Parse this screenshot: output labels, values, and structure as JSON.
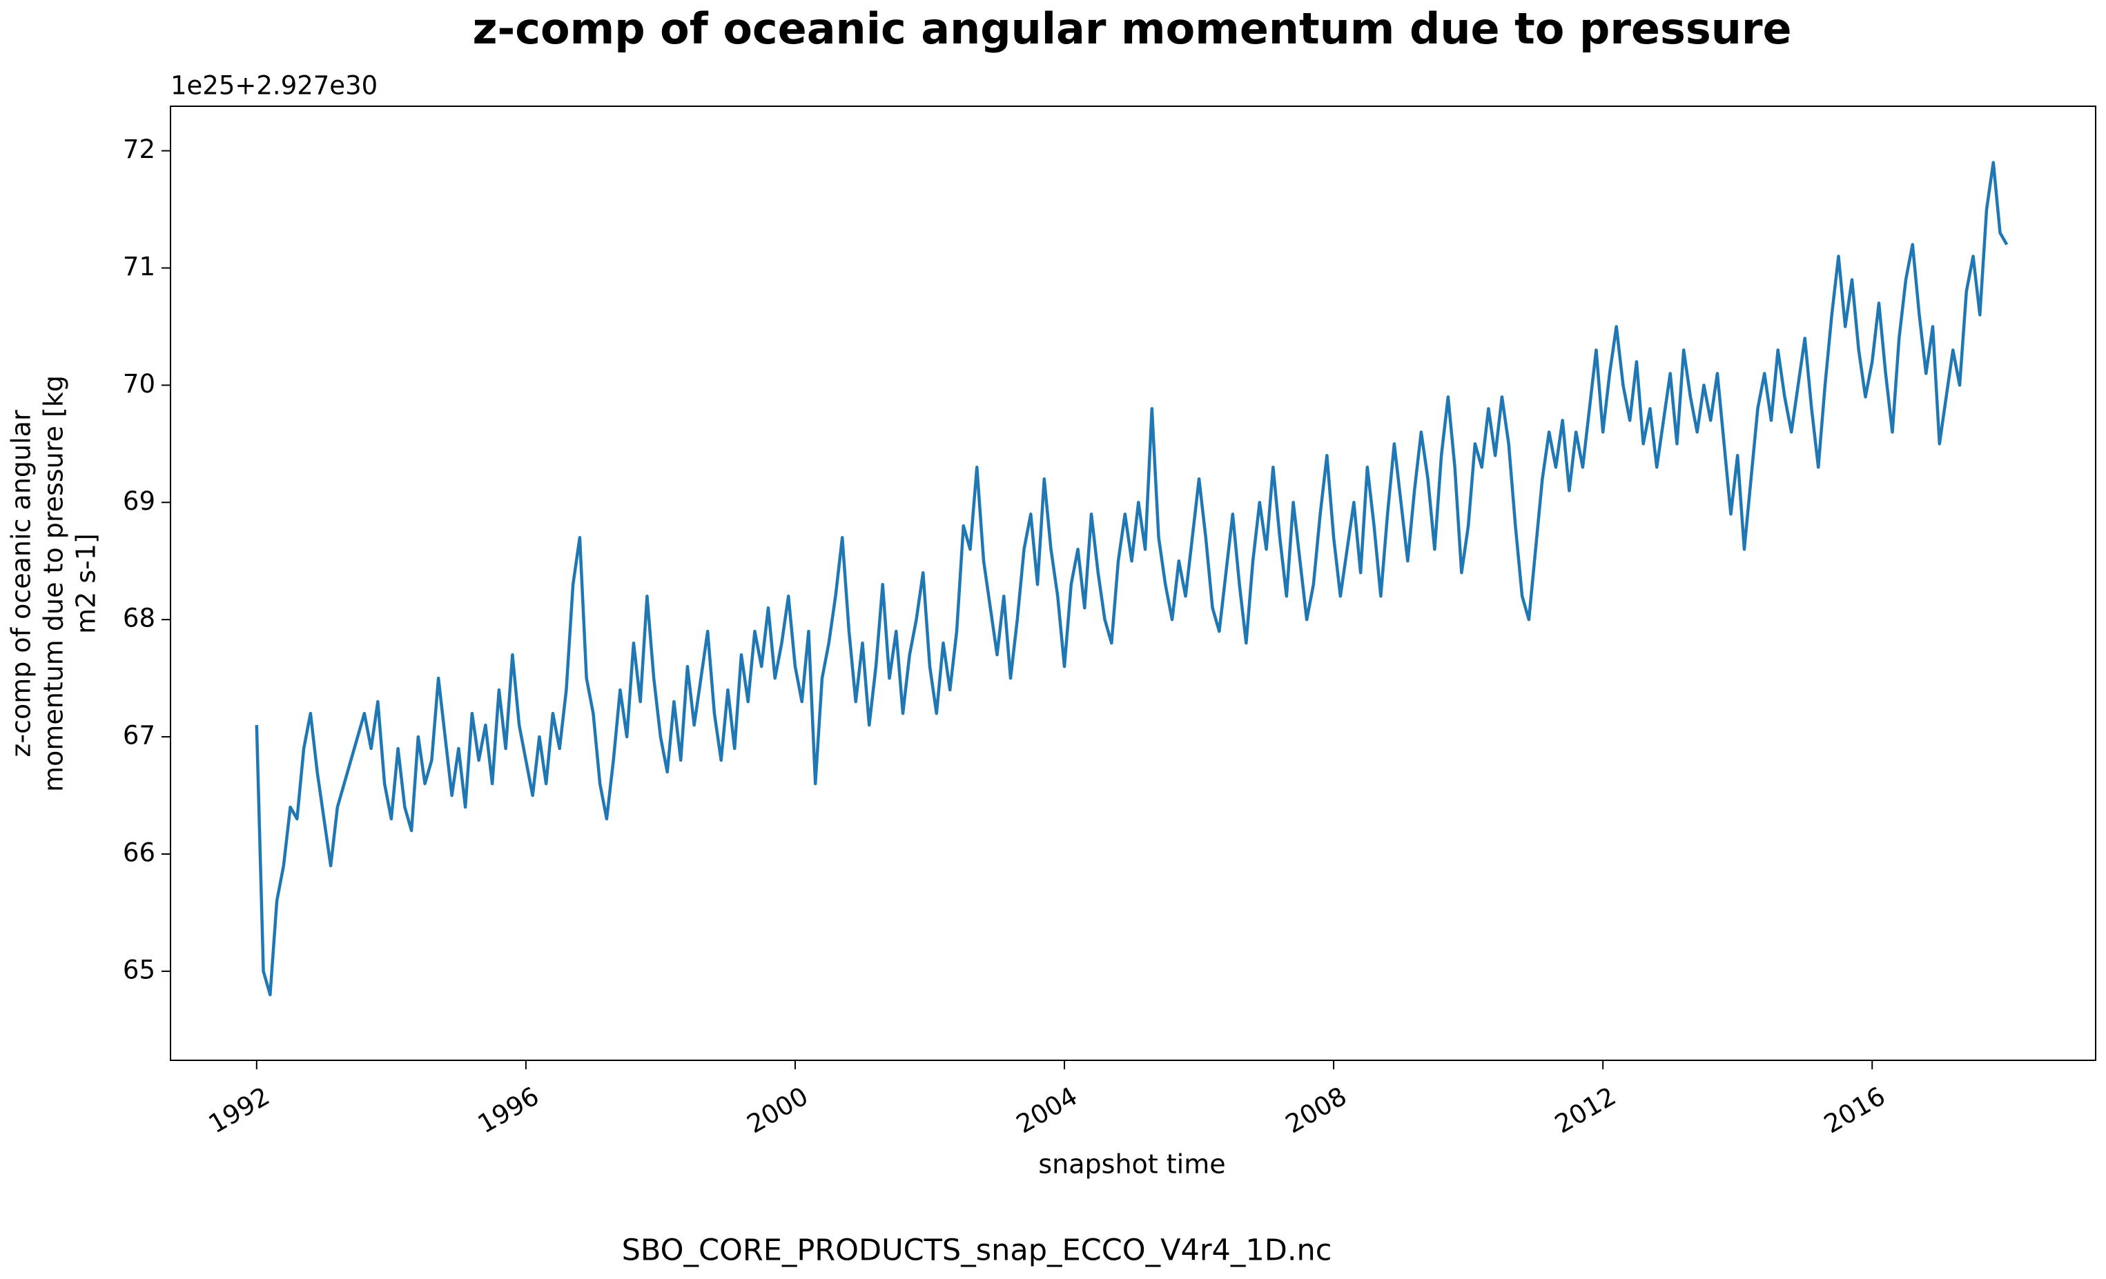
{
  "chart_data": {
    "type": "line",
    "title": "z-comp of oceanic angular momentum due to pressure",
    "y_offset_label": "1e25+2.927e30",
    "ylabel": [
      "z-comp of oceanic angular",
      "momentum due to pressure [kg",
      "m2 s-1]"
    ],
    "xlabel": "snapshot time",
    "footer": "SBO_CORE_PRODUCTS_snap_ECCO_V4r4_1D.nc",
    "xlim": [
      1990.72,
      2019.32
    ],
    "xticks": [
      1992,
      1996,
      2000,
      2004,
      2008,
      2012,
      2016
    ],
    "ylim": [
      64.24,
      72.38
    ],
    "yticks": [
      65,
      66,
      67,
      68,
      69,
      70,
      71,
      72
    ],
    "grid": false,
    "x": [
      1992,
      1992.1,
      1992.2,
      1992.3,
      1992.4,
      1992.5,
      1992.6,
      1992.7,
      1992.8,
      1992.9,
      1993,
      1993.1,
      1993.2,
      1993.3,
      1993.4,
      1993.5,
      1993.6,
      1993.7,
      1993.8,
      1993.9,
      1994,
      1994.1,
      1994.2,
      1994.3,
      1994.4,
      1994.5,
      1994.6,
      1994.7,
      1994.8,
      1994.9,
      1995,
      1995.1,
      1995.2,
      1995.3,
      1995.4,
      1995.5,
      1995.6,
      1995.7,
      1995.8,
      1995.9,
      1996,
      1996.1,
      1996.2,
      1996.3,
      1996.4,
      1996.5,
      1996.6,
      1996.7,
      1996.8,
      1996.9,
      1997,
      1997.1,
      1997.2,
      1997.3,
      1997.4,
      1997.5,
      1997.6,
      1997.7,
      1997.8,
      1997.9,
      1998,
      1998.1,
      1998.2,
      1998.3,
      1998.4,
      1998.5,
      1998.6,
      1998.7,
      1998.8,
      1998.9,
      1999,
      1999.1,
      1999.2,
      1999.3,
      1999.4,
      1999.5,
      1999.6,
      1999.7,
      1999.8,
      1999.9,
      2000,
      2000.1,
      2000.2,
      2000.3,
      2000.4,
      2000.5,
      2000.6,
      2000.7,
      2000.8,
      2000.9,
      2001,
      2001.1,
      2001.2,
      2001.3,
      2001.4,
      2001.5,
      2001.6,
      2001.7,
      2001.8,
      2001.9,
      2002,
      2002.1,
      2002.2,
      2002.3,
      2002.4,
      2002.5,
      2002.6,
      2002.7,
      2002.8,
      2002.9,
      2003,
      2003.1,
      2003.2,
      2003.3,
      2003.4,
      2003.5,
      2003.6,
      2003.7,
      2003.8,
      2003.9,
      2004,
      2004.1,
      2004.2,
      2004.3,
      2004.4,
      2004.5,
      2004.6,
      2004.7,
      2004.8,
      2004.9,
      2005,
      2005.1,
      2005.2,
      2005.3,
      2005.4,
      2005.5,
      2005.6,
      2005.7,
      2005.8,
      2005.9,
      2006,
      2006.1,
      2006.2,
      2006.3,
      2006.4,
      2006.5,
      2006.6,
      2006.7,
      2006.8,
      2006.9,
      2007,
      2007.1,
      2007.2,
      2007.3,
      2007.4,
      2007.5,
      2007.6,
      2007.7,
      2007.8,
      2007.9,
      2008,
      2008.1,
      2008.2,
      2008.3,
      2008.4,
      2008.5,
      2008.6,
      2008.7,
      2008.8,
      2008.9,
      2009,
      2009.1,
      2009.2,
      2009.3,
      2009.4,
      2009.5,
      2009.6,
      2009.7,
      2009.8,
      2009.9,
      2010,
      2010.1,
      2010.2,
      2010.3,
      2010.4,
      2010.5,
      2010.6,
      2010.7,
      2010.8,
      2010.9,
      2011,
      2011.1,
      2011.2,
      2011.3,
      2011.4,
      2011.5,
      2011.6,
      2011.7,
      2011.8,
      2011.9,
      2012,
      2012.1,
      2012.2,
      2012.3,
      2012.4,
      2012.5,
      2012.6,
      2012.7,
      2012.8,
      2012.9,
      2013,
      2013.1,
      2013.2,
      2013.3,
      2013.4,
      2013.5,
      2013.6,
      2013.7,
      2013.8,
      2013.9,
      2014,
      2014.1,
      2014.2,
      2014.3,
      2014.4,
      2014.5,
      2014.6,
      2014.7,
      2014.8,
      2014.9,
      2015,
      2015.1,
      2015.2,
      2015.3,
      2015.4,
      2015.5,
      2015.6,
      2015.7,
      2015.8,
      2015.9,
      2016,
      2016.1,
      2016.2,
      2016.3,
      2016.4,
      2016.5,
      2016.6,
      2016.7,
      2016.8,
      2016.9,
      2017,
      2017.1,
      2017.2,
      2017.3,
      2017.4,
      2017.5,
      2017.6,
      2017.7,
      2017.8,
      2017.9,
      2018
    ],
    "series": [
      {
        "color": "#1f77b4",
        "values": [
          67.1,
          65.0,
          64.8,
          65.6,
          65.9,
          66.4,
          66.3,
          66.9,
          67.2,
          66.7,
          66.3,
          65.9,
          66.4,
          66.6,
          66.8,
          67.0,
          67.2,
          66.9,
          67.3,
          66.6,
          66.3,
          66.9,
          66.4,
          66.2,
          67.0,
          66.6,
          66.8,
          67.5,
          67.0,
          66.5,
          66.9,
          66.4,
          67.2,
          66.8,
          67.1,
          66.6,
          67.4,
          66.9,
          67.7,
          67.1,
          66.8,
          66.5,
          67.0,
          66.6,
          67.2,
          66.9,
          67.4,
          68.3,
          68.7,
          67.5,
          67.2,
          66.6,
          66.3,
          66.8,
          67.4,
          67.0,
          67.8,
          67.3,
          68.2,
          67.5,
          67.0,
          66.7,
          67.3,
          66.8,
          67.6,
          67.1,
          67.5,
          67.9,
          67.2,
          66.8,
          67.4,
          66.9,
          67.7,
          67.3,
          67.9,
          67.6,
          68.1,
          67.5,
          67.8,
          68.2,
          67.6,
          67.3,
          67.9,
          66.6,
          67.5,
          67.8,
          68.2,
          68.7,
          67.9,
          67.3,
          67.8,
          67.1,
          67.6,
          68.3,
          67.5,
          67.9,
          67.2,
          67.7,
          68.0,
          68.4,
          67.6,
          67.2,
          67.8,
          67.4,
          67.9,
          68.8,
          68.6,
          69.3,
          68.5,
          68.1,
          67.7,
          68.2,
          67.5,
          68.0,
          68.6,
          68.9,
          68.3,
          69.2,
          68.6,
          68.2,
          67.6,
          68.3,
          68.6,
          68.1,
          68.9,
          68.4,
          68.0,
          67.8,
          68.5,
          68.9,
          68.5,
          69.0,
          68.6,
          69.8,
          68.7,
          68.3,
          68.0,
          68.5,
          68.2,
          68.7,
          69.2,
          68.7,
          68.1,
          67.9,
          68.4,
          68.9,
          68.3,
          67.8,
          68.5,
          69.0,
          68.6,
          69.3,
          68.7,
          68.2,
          69.0,
          68.5,
          68.0,
          68.3,
          68.9,
          69.4,
          68.7,
          68.2,
          68.6,
          69.0,
          68.4,
          69.3,
          68.8,
          68.2,
          68.9,
          69.5,
          69.0,
          68.5,
          69.1,
          69.6,
          69.2,
          68.6,
          69.4,
          69.9,
          69.3,
          68.4,
          68.8,
          69.5,
          69.3,
          69.8,
          69.4,
          69.9,
          69.5,
          68.8,
          68.2,
          68.0,
          68.6,
          69.2,
          69.6,
          69.3,
          69.7,
          69.1,
          69.6,
          69.3,
          69.8,
          70.3,
          69.6,
          70.1,
          70.5,
          70.0,
          69.7,
          70.2,
          69.5,
          69.8,
          69.3,
          69.7,
          70.1,
          69.5,
          70.3,
          69.9,
          69.6,
          70.0,
          69.7,
          70.1,
          69.5,
          68.9,
          69.4,
          68.6,
          69.2,
          69.8,
          70.1,
          69.7,
          70.3,
          69.9,
          69.6,
          70.0,
          70.4,
          69.8,
          69.3,
          70.0,
          70.6,
          71.1,
          70.5,
          70.9,
          70.3,
          69.9,
          70.2,
          70.7,
          70.1,
          69.6,
          70.4,
          70.9,
          71.2,
          70.6,
          70.1,
          70.5,
          69.5,
          69.9,
          70.3,
          70.0,
          70.8,
          71.1,
          70.6,
          71.5,
          71.9,
          71.3,
          71.2
        ]
      }
    ]
  }
}
